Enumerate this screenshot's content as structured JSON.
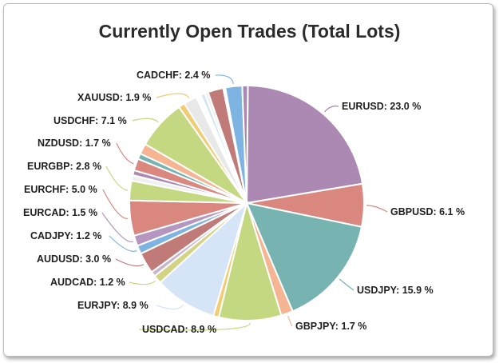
{
  "chart_data": {
    "type": "pie",
    "title": "Currently Open Trades (Total Lots)",
    "slices": [
      {
        "label": "EURUSD",
        "value": 23.0,
        "display": "23.0 %",
        "color": "#ab89b3"
      },
      {
        "label": "GBPUSD",
        "value": 6.1,
        "display": "6.1 %",
        "color": "#d9877f"
      },
      {
        "label": "USDJPY",
        "value": 15.9,
        "display": "15.9 %",
        "color": "#76b3b1"
      },
      {
        "label": "GBPJPY",
        "value": 1.7,
        "display": "1.7 %",
        "color": "#f5b593"
      },
      {
        "label": "USDCAD",
        "value": 8.9,
        "display": "8.9 %",
        "color": "#c4d882"
      },
      {
        "label": "",
        "value": 0.8,
        "display": "",
        "color": "#f2cc74"
      },
      {
        "label": "EURJPY",
        "value": 8.9,
        "display": "8.9 %",
        "color": "#d5e5f7"
      },
      {
        "label": "AUDCAD",
        "value": 1.2,
        "display": "1.2 %",
        "color": "#d2d383"
      },
      {
        "label": "",
        "value": 0.7,
        "display": "",
        "color": "#c8b5cc"
      },
      {
        "label": "AUDUSD",
        "value": 3.0,
        "display": "3.0 %",
        "color": "#c07a78"
      },
      {
        "label": "CADJPY",
        "value": 1.2,
        "display": "1.2 %",
        "color": "#7eb4e2"
      },
      {
        "label": "EURCAD",
        "value": 1.5,
        "display": "1.5 %",
        "color": "#b596c0"
      },
      {
        "label": "EURCHF",
        "value": 5.0,
        "display": "5.0 %",
        "color": "#d9877f"
      },
      {
        "label": "EURGBP",
        "value": 2.8,
        "display": "2.8 %",
        "color": "#c4d882"
      },
      {
        "label": "",
        "value": 0.8,
        "display": "",
        "color": "#f0f0f0"
      },
      {
        "label": "",
        "value": 0.7,
        "display": "",
        "color": "#ab89b3"
      },
      {
        "label": "NZDUSD",
        "value": 1.7,
        "display": "1.7 %",
        "color": "#d9877f"
      },
      {
        "label": "",
        "value": 0.8,
        "display": "",
        "color": "#76b3b1"
      },
      {
        "label": "",
        "value": 1.5,
        "display": "",
        "color": "#f5b593"
      },
      {
        "label": "USDCHF",
        "value": 7.1,
        "display": "7.1 %",
        "color": "#c4d882"
      },
      {
        "label": "",
        "value": 0.9,
        "display": "",
        "color": "#f2cc74"
      },
      {
        "label": "XAUUSD",
        "value": 1.9,
        "display": "1.9 %",
        "color": "#e8e8e8"
      },
      {
        "label": "",
        "value": 0.7,
        "display": "",
        "color": "#ffffff"
      },
      {
        "label": "",
        "value": 0.6,
        "display": "",
        "color": "#d5e5f7"
      },
      {
        "label": "",
        "value": 0.5,
        "display": "",
        "color": "#f0f0f0"
      },
      {
        "label": "",
        "value": 2.2,
        "display": "",
        "color": "#c07a78"
      },
      {
        "label": "",
        "value": 0.3,
        "display": "",
        "color": "#ffffff"
      },
      {
        "label": "CADCHF",
        "value": 2.4,
        "display": "2.4 %",
        "color": "#7eb4e2"
      },
      {
        "label": "",
        "value": 0.8,
        "display": "",
        "color": "#ab89b3"
      }
    ],
    "legend": "none"
  }
}
